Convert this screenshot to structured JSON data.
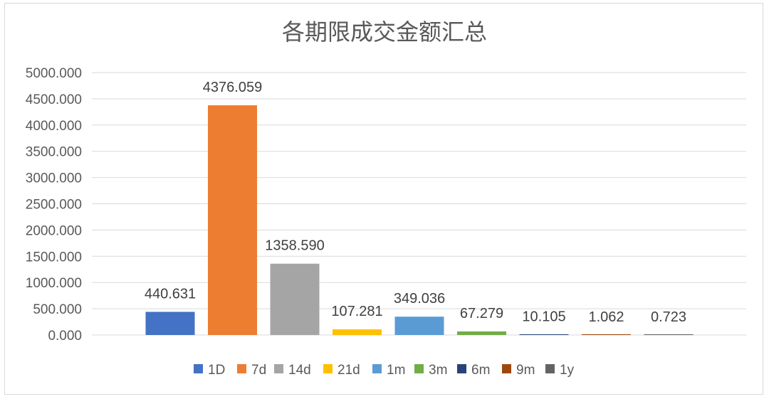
{
  "chart_data": {
    "type": "bar",
    "title": "各期限成交金额汇总",
    "categories": [
      "1D",
      "7d",
      "14d",
      "21d",
      "1m",
      "3m",
      "6m",
      "9m",
      "1y"
    ],
    "values": [
      440.631,
      4376.059,
      1358.59,
      107.281,
      349.036,
      67.279,
      10.105,
      1.062,
      0.723
    ],
    "data_labels": [
      "440.631",
      "4376.059",
      "1358.590",
      "107.281",
      "349.036",
      "67.279",
      "10.105",
      "1.062",
      "0.723"
    ],
    "colors": [
      "#4472c4",
      "#ed7d31",
      "#a5a5a5",
      "#ffc000",
      "#5b9bd5",
      "#70ad47",
      "#264478",
      "#9e480e",
      "#636363"
    ],
    "ylim": [
      0,
      5000
    ],
    "yticks": [
      "0.000",
      "500.000",
      "1000.000",
      "1500.000",
      "2000.000",
      "2500.000",
      "3000.000",
      "3500.000",
      "4000.000",
      "4500.000",
      "5000.000"
    ],
    "grid": true,
    "legend_position": "bottom",
    "xlabel": "",
    "ylabel": ""
  }
}
